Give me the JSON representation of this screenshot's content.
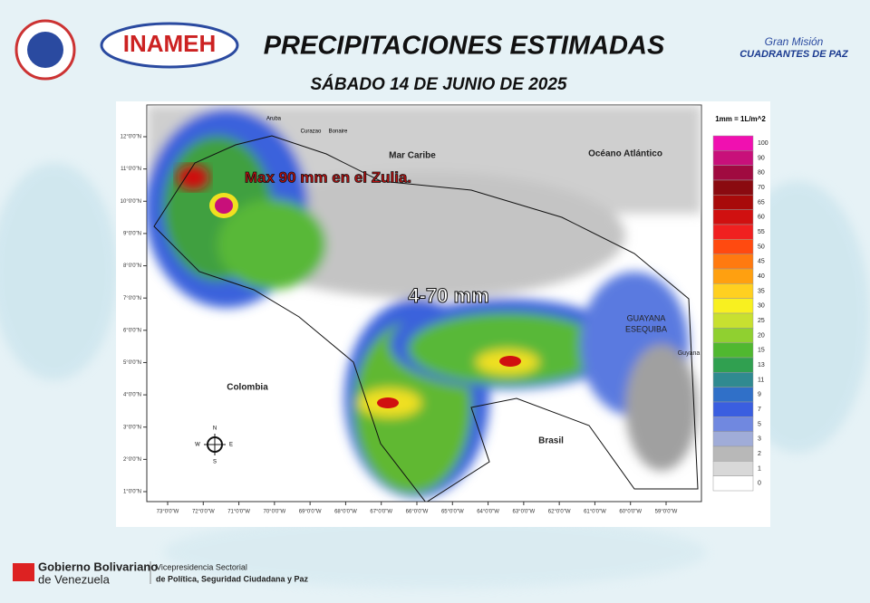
{
  "header": {
    "title": "PRECIPITACIONES ESTIMADAS",
    "subtitle": "SÁBADO 14  DE JUNIO DE 2025",
    "logo_left": "INAMEH",
    "logo_right_top": "Gran Misión",
    "logo_right_bottom": "CUADRANTES DE PAZ"
  },
  "map": {
    "labels": {
      "sea": "Mar Caribe",
      "ocean": "Océano Atlántico",
      "colombia": "Colombia",
      "brasil": "Brasil",
      "guayana1": "GUAYANA",
      "guayana2": "ESEQUIBA",
      "guyana": "Guyana",
      "aruba": "Aruba",
      "curazao": "Curazao",
      "bonaire": "Bonaire"
    },
    "annotations": {
      "max": "Max 90 mm en el Zulia.",
      "range": "4-70 mm"
    },
    "compass": {
      "n": "N",
      "s": "S",
      "e": "E",
      "w": "W"
    },
    "lat_ticks": [
      {
        "value": 12,
        "label": "12°0'0\"N"
      },
      {
        "value": 11,
        "label": "11°0'0\"N"
      },
      {
        "value": 10,
        "label": "10°0'0\"N"
      },
      {
        "value": 9,
        "label": "9°0'0\"N"
      },
      {
        "value": 8,
        "label": "8°0'0\"N"
      },
      {
        "value": 7,
        "label": "7°0'0\"N"
      },
      {
        "value": 6,
        "label": "6°0'0\"N"
      },
      {
        "value": 5,
        "label": "5°0'0\"N"
      },
      {
        "value": 4,
        "label": "4°0'0\"N"
      },
      {
        "value": 3,
        "label": "3°0'0\"N"
      },
      {
        "value": 2,
        "label": "2°0'0\"N"
      },
      {
        "value": 1,
        "label": "1°0'0\"N"
      }
    ],
    "lon_ticks": [
      {
        "value": 73,
        "label": "73°0'0\"W"
      },
      {
        "value": 72,
        "label": "72°0'0\"W"
      },
      {
        "value": 71,
        "label": "71°0'0\"W"
      },
      {
        "value": 70,
        "label": "70°0'0\"W"
      },
      {
        "value": 69,
        "label": "69°0'0\"W"
      },
      {
        "value": 68,
        "label": "68°0'0\"W"
      },
      {
        "value": 67,
        "label": "67°0'0\"W"
      },
      {
        "value": 66,
        "label": "66°0'0\"W"
      },
      {
        "value": 65,
        "label": "65°0'0\"W"
      },
      {
        "value": 64,
        "label": "64°0'0\"W"
      },
      {
        "value": 63,
        "label": "63°0'0\"W"
      },
      {
        "value": 62,
        "label": "62°0'0\"W"
      },
      {
        "value": 61,
        "label": "61°0'0\"W"
      },
      {
        "value": 60,
        "label": "60°0'0\"W"
      },
      {
        "value": 59,
        "label": "59°0'0\"W"
      }
    ]
  },
  "legend": {
    "title": "1mm = 1L/m^2",
    "items": [
      {
        "value": 100,
        "color": "#f010b0"
      },
      {
        "value": 90,
        "color": "#c8107a"
      },
      {
        "value": 80,
        "color": "#a00a40"
      },
      {
        "value": 70,
        "color": "#8a0a10"
      },
      {
        "value": 65,
        "color": "#a80a0a"
      },
      {
        "value": 60,
        "color": "#d01010"
      },
      {
        "value": 55,
        "color": "#f02020"
      },
      {
        "value": 50,
        "color": "#ff4a10"
      },
      {
        "value": 45,
        "color": "#ff7a10"
      },
      {
        "value": 40,
        "color": "#ffa010"
      },
      {
        "value": 35,
        "color": "#ffd020"
      },
      {
        "value": 30,
        "color": "#f8f020"
      },
      {
        "value": 25,
        "color": "#c8e030"
      },
      {
        "value": 20,
        "color": "#90d030"
      },
      {
        "value": 15,
        "color": "#50b830"
      },
      {
        "value": 13,
        "color": "#30a050"
      },
      {
        "value": 11,
        "color": "#308a90"
      },
      {
        "value": 9,
        "color": "#3070c8"
      },
      {
        "value": 7,
        "color": "#3a5ee0"
      },
      {
        "value": 5,
        "color": "#7088e0"
      },
      {
        "value": 3,
        "color": "#a0acd8"
      },
      {
        "value": 2,
        "color": "#b8b8b8"
      },
      {
        "value": 1,
        "color": "#d8d8d8"
      },
      {
        "value": 0,
        "color": "#ffffff"
      }
    ]
  },
  "footer": {
    "gov1": "Gobierno Bolivariano",
    "gov2": "de Venezuela",
    "vice1": "Vicepresidencia Sectorial",
    "vice2": "de Política, Seguridad Ciudadana y Paz"
  }
}
